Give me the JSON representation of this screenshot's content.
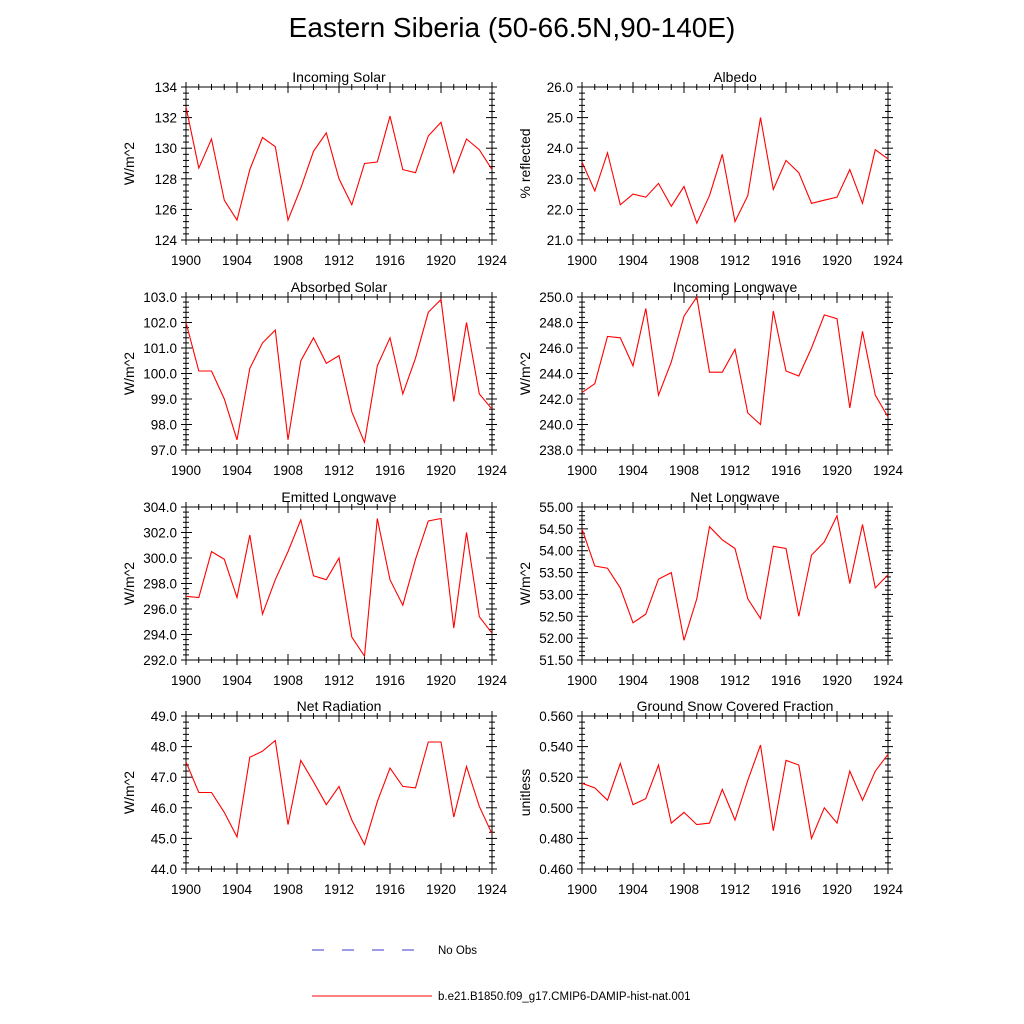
{
  "page_title": "Eastern Siberia (50-66.5N,90-140E)",
  "legend": {
    "items": [
      {
        "label": "No Obs",
        "color": "#3b3bcc",
        "style": "dashed"
      },
      {
        "label": "b.e21.B1850.f09_g17.CMIP6-DAMIP-hist-nat.001",
        "color": "#ff0000",
        "style": "solid"
      }
    ]
  },
  "chart_data": [
    {
      "type": "line",
      "title": "Incoming Solar",
      "ylabel": "W/m^2",
      "xlim": [
        1900,
        1924
      ],
      "ylim": [
        124,
        134
      ],
      "yticks": [
        "124",
        "126",
        "128",
        "130",
        "132",
        "134"
      ],
      "ytick_values": [
        124,
        126,
        128,
        130,
        132,
        134
      ],
      "xticks": [
        "1900",
        "1904",
        "1908",
        "1912",
        "1916",
        "1920",
        "1924"
      ],
      "x": [
        1900,
        1901,
        1902,
        1903,
        1904,
        1905,
        1906,
        1907,
        1908,
        1909,
        1910,
        1911,
        1912,
        1913,
        1914,
        1915,
        1916,
        1917,
        1918,
        1919,
        1920,
        1921,
        1922,
        1923,
        1924
      ],
      "series": [
        {
          "name": "b.e21.B1850.f09_g17.CMIP6-DAMIP-hist-nat.001",
          "color": "#ff0000",
          "values": [
            132.7,
            128.7,
            130.6,
            126.6,
            125.3,
            128.6,
            130.7,
            130.1,
            125.3,
            127.4,
            129.8,
            131.0,
            128.0,
            126.3,
            129.0,
            129.1,
            132.1,
            128.6,
            128.4,
            130.8,
            131.7,
            128.4,
            130.6,
            129.9,
            128.6
          ]
        }
      ]
    },
    {
      "type": "line",
      "title": "Albedo",
      "ylabel": "% reflected",
      "xlim": [
        1900,
        1924
      ],
      "ylim": [
        21.0,
        26.0
      ],
      "yticks": [
        "21.0",
        "22.0",
        "23.0",
        "24.0",
        "25.0",
        "26.0"
      ],
      "ytick_values": [
        21,
        22,
        23,
        24,
        25,
        26
      ],
      "xticks": [
        "1900",
        "1904",
        "1908",
        "1912",
        "1916",
        "1920",
        "1924"
      ],
      "x": [
        1900,
        1901,
        1902,
        1903,
        1904,
        1905,
        1906,
        1907,
        1908,
        1909,
        1910,
        1911,
        1912,
        1913,
        1914,
        1915,
        1916,
        1917,
        1918,
        1919,
        1920,
        1921,
        1922,
        1923,
        1924
      ],
      "series": [
        {
          "name": "b.e21.B1850.f09_g17.CMIP6-DAMIP-hist-nat.001",
          "color": "#ff0000",
          "values": [
            23.55,
            22.6,
            23.85,
            22.15,
            22.5,
            22.4,
            22.85,
            22.1,
            22.75,
            21.55,
            22.45,
            23.8,
            21.6,
            22.45,
            25.0,
            22.65,
            23.6,
            23.2,
            22.2,
            22.3,
            22.4,
            23.3,
            22.2,
            23.95,
            23.65
          ]
        }
      ]
    },
    {
      "type": "line",
      "title": "Absorbed Solar",
      "ylabel": "W/m^2",
      "xlim": [
        1900,
        1924
      ],
      "ylim": [
        97.0,
        103.0
      ],
      "yticks": [
        "97.0",
        "98.0",
        "99.0",
        "100.0",
        "101.0",
        "102.0",
        "103.0"
      ],
      "ytick_values": [
        97,
        98,
        99,
        100,
        101,
        102,
        103
      ],
      "xticks": [
        "1900",
        "1904",
        "1908",
        "1912",
        "1916",
        "1920",
        "1924"
      ],
      "x": [
        1900,
        1901,
        1902,
        1903,
        1904,
        1905,
        1906,
        1907,
        1908,
        1909,
        1910,
        1911,
        1912,
        1913,
        1914,
        1915,
        1916,
        1917,
        1918,
        1919,
        1920,
        1921,
        1922,
        1923,
        1924
      ],
      "series": [
        {
          "name": "b.e21.B1850.f09_g17.CMIP6-DAMIP-hist-nat.001",
          "color": "#ff0000",
          "values": [
            102.0,
            100.1,
            100.1,
            99.0,
            97.4,
            100.2,
            101.2,
            101.7,
            97.4,
            100.5,
            101.4,
            100.4,
            100.7,
            98.5,
            97.3,
            100.3,
            101.4,
            99.2,
            100.6,
            102.4,
            102.9,
            98.9,
            102.0,
            99.2,
            98.6
          ]
        }
      ]
    },
    {
      "type": "line",
      "title": "Incoming Longwave",
      "ylabel": "W/m^2",
      "xlim": [
        1900,
        1924
      ],
      "ylim": [
        238.0,
        250.0
      ],
      "yticks": [
        "238.0",
        "240.0",
        "242.0",
        "244.0",
        "246.0",
        "248.0",
        "250.0"
      ],
      "ytick_values": [
        238,
        240,
        242,
        244,
        246,
        248,
        250
      ],
      "xticks": [
        "1900",
        "1904",
        "1908",
        "1912",
        "1916",
        "1920",
        "1924"
      ],
      "x": [
        1900,
        1901,
        1902,
        1903,
        1904,
        1905,
        1906,
        1907,
        1908,
        1909,
        1910,
        1911,
        1912,
        1913,
        1914,
        1915,
        1916,
        1917,
        1918,
        1919,
        1920,
        1921,
        1922,
        1923,
        1924
      ],
      "series": [
        {
          "name": "b.e21.B1850.f09_g17.CMIP6-DAMIP-hist-nat.001",
          "color": "#ff0000",
          "values": [
            242.5,
            243.2,
            246.9,
            246.8,
            244.6,
            249.1,
            242.3,
            244.9,
            248.5,
            250.0,
            244.1,
            244.1,
            245.9,
            240.9,
            240.0,
            248.9,
            244.2,
            243.8,
            246.0,
            248.6,
            248.3,
            241.3,
            247.3,
            242.3,
            240.6
          ]
        }
      ]
    },
    {
      "type": "line",
      "title": "Emitted Longwave",
      "ylabel": "W/m^2",
      "xlim": [
        1900,
        1924
      ],
      "ylim": [
        292.0,
        304.0
      ],
      "yticks": [
        "292.0",
        "294.0",
        "296.0",
        "298.0",
        "300.0",
        "302.0",
        "304.0"
      ],
      "ytick_values": [
        292,
        294,
        296,
        298,
        300,
        302,
        304
      ],
      "xticks": [
        "1900",
        "1904",
        "1908",
        "1912",
        "1916",
        "1920",
        "1924"
      ],
      "x": [
        1900,
        1901,
        1902,
        1903,
        1904,
        1905,
        1906,
        1907,
        1908,
        1909,
        1910,
        1911,
        1912,
        1913,
        1914,
        1915,
        1916,
        1917,
        1918,
        1919,
        1920,
        1921,
        1922,
        1923,
        1924
      ],
      "series": [
        {
          "name": "b.e21.B1850.f09_g17.CMIP6-DAMIP-hist-nat.001",
          "color": "#ff0000",
          "values": [
            297.0,
            296.9,
            300.5,
            299.9,
            296.9,
            301.8,
            295.6,
            298.3,
            300.5,
            303.0,
            298.6,
            298.3,
            300.0,
            293.8,
            292.3,
            303.1,
            298.3,
            296.3,
            299.9,
            302.9,
            303.1,
            294.5,
            302.0,
            295.4,
            294.1
          ]
        }
      ]
    },
    {
      "type": "line",
      "title": "Net Longwave",
      "ylabel": "W/m^2",
      "xlim": [
        1900,
        1924
      ],
      "ylim": [
        51.5,
        55.0
      ],
      "yticks": [
        "51.50",
        "52.00",
        "52.50",
        "53.00",
        "53.50",
        "54.00",
        "54.50",
        "55.00"
      ],
      "ytick_values": [
        51.5,
        52,
        52.5,
        53,
        53.5,
        54,
        54.5,
        55
      ],
      "xticks": [
        "1900",
        "1904",
        "1908",
        "1912",
        "1916",
        "1920",
        "1924"
      ],
      "x": [
        1900,
        1901,
        1902,
        1903,
        1904,
        1905,
        1906,
        1907,
        1908,
        1909,
        1910,
        1911,
        1912,
        1913,
        1914,
        1915,
        1916,
        1917,
        1918,
        1919,
        1920,
        1921,
        1922,
        1923,
        1924
      ],
      "series": [
        {
          "name": "b.e21.B1850.f09_g17.CMIP6-DAMIP-hist-nat.001",
          "color": "#ff0000",
          "values": [
            54.5,
            53.65,
            53.6,
            53.15,
            52.35,
            52.55,
            53.35,
            53.5,
            51.95,
            52.9,
            54.55,
            54.25,
            54.05,
            52.9,
            52.45,
            54.1,
            54.05,
            52.5,
            53.9,
            54.2,
            54.8,
            53.25,
            54.6,
            53.15,
            53.45
          ]
        }
      ]
    },
    {
      "type": "line",
      "title": "Net Radiation",
      "ylabel": "W/m^2",
      "xlim": [
        1900,
        1924
      ],
      "ylim": [
        44.0,
        49.0
      ],
      "yticks": [
        "44.0",
        "45.0",
        "46.0",
        "47.0",
        "48.0",
        "49.0"
      ],
      "ytick_values": [
        44,
        45,
        46,
        47,
        48,
        49
      ],
      "xticks": [
        "1900",
        "1904",
        "1908",
        "1912",
        "1916",
        "1920",
        "1924"
      ],
      "x": [
        1900,
        1901,
        1902,
        1903,
        1904,
        1905,
        1906,
        1907,
        1908,
        1909,
        1910,
        1911,
        1912,
        1913,
        1914,
        1915,
        1916,
        1917,
        1918,
        1919,
        1920,
        1921,
        1922,
        1923,
        1924
      ],
      "series": [
        {
          "name": "b.e21.B1850.f09_g17.CMIP6-DAMIP-hist-nat.001",
          "color": "#ff0000",
          "values": [
            47.5,
            46.5,
            46.5,
            45.85,
            45.05,
            47.65,
            47.85,
            48.2,
            45.45,
            47.55,
            46.85,
            46.1,
            46.7,
            45.6,
            44.8,
            46.2,
            47.3,
            46.7,
            46.65,
            48.15,
            48.15,
            45.7,
            47.35,
            46.05,
            45.15
          ]
        }
      ]
    },
    {
      "type": "line",
      "title": "Ground Snow Covered Fraction",
      "ylabel": "unitless",
      "xlim": [
        1900,
        1924
      ],
      "ylim": [
        0.46,
        0.56
      ],
      "yticks": [
        "0.460",
        "0.480",
        "0.500",
        "0.520",
        "0.540",
        "0.560"
      ],
      "ytick_values": [
        0.46,
        0.48,
        0.5,
        0.52,
        0.54,
        0.56
      ],
      "xticks": [
        "1900",
        "1904",
        "1908",
        "1912",
        "1916",
        "1920",
        "1924"
      ],
      "x": [
        1900,
        1901,
        1902,
        1903,
        1904,
        1905,
        1906,
        1907,
        1908,
        1909,
        1910,
        1911,
        1912,
        1913,
        1914,
        1915,
        1916,
        1917,
        1918,
        1919,
        1920,
        1921,
        1922,
        1923,
        1924
      ],
      "series": [
        {
          "name": "b.e21.B1850.f09_g17.CMIP6-DAMIP-hist-nat.001",
          "color": "#ff0000",
          "values": [
            0.516,
            0.513,
            0.505,
            0.529,
            0.502,
            0.506,
            0.528,
            0.49,
            0.497,
            0.489,
            0.49,
            0.512,
            0.492,
            0.518,
            0.541,
            0.485,
            0.531,
            0.528,
            0.48,
            0.5,
            0.49,
            0.524,
            0.505,
            0.524,
            0.535
          ]
        }
      ]
    }
  ]
}
